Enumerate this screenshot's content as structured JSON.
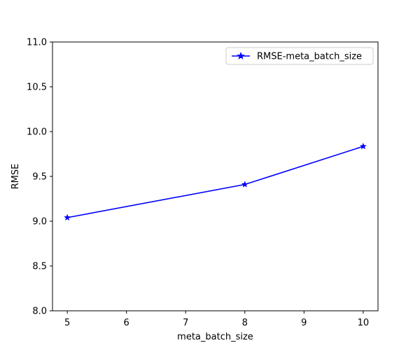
{
  "chart_data": {
    "type": "line",
    "title": "",
    "xlabel": "meta_batch_size",
    "ylabel": "RMSE",
    "xlim": [
      4.75,
      10.25
    ],
    "ylim": [
      8.0,
      11.0
    ],
    "xticks": [
      5,
      6,
      7,
      8,
      9,
      10
    ],
    "xtick_labels": [
      "5",
      "6",
      "7",
      "8",
      "9",
      "10"
    ],
    "yticks": [
      8.0,
      8.5,
      9.0,
      9.5,
      10.0,
      10.5,
      11.0
    ],
    "ytick_labels": [
      "8.0",
      "8.5",
      "9.0",
      "9.5",
      "10.0",
      "10.5",
      "11.0"
    ],
    "grid": false,
    "legend_position": "top-right",
    "series": [
      {
        "name": "RMSE-meta_batch_size",
        "color": "#0000ff",
        "marker": "star",
        "x": [
          5,
          8,
          10
        ],
        "y": [
          9.04,
          9.41,
          9.835
        ]
      }
    ]
  }
}
